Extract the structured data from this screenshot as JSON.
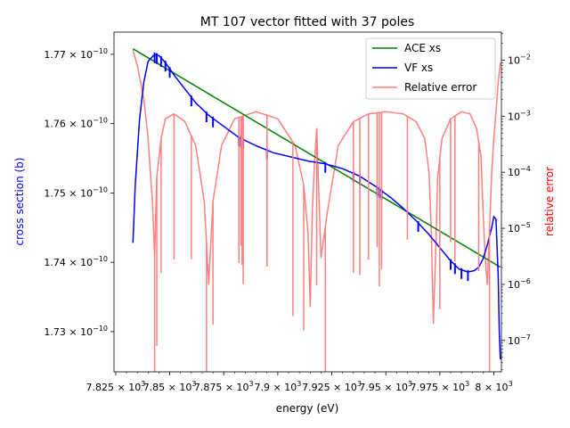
{
  "chart_data": {
    "type": "line",
    "title": "MT 107 vector fitted with 37 poles",
    "xlabel": "energy (eV)",
    "ylabel_left": "cross section (b)",
    "ylabel_right": "relative error",
    "colors": {
      "ace": "#008000",
      "vf": "#0000ff",
      "err": "#ff7f7f",
      "left_label": "#0000ff",
      "right_label": "#ff0000"
    },
    "x_range": [
      7824.2,
      8003.5
    ],
    "y_left_range": [
      1.7242e-10,
      1.7732e-10
    ],
    "y_right_range_log": [
      -7.56,
      -1.5
    ],
    "x_ticks": [
      {
        "value": 7825,
        "label_base": "7.825 × 10",
        "label_exp": "3"
      },
      {
        "value": 7850,
        "label_base": "7.85 × 10",
        "label_exp": "3"
      },
      {
        "value": 7875,
        "label_base": "7.875 × 10",
        "label_exp": "3"
      },
      {
        "value": 7900,
        "label_base": "7.9 × 10",
        "label_exp": "3"
      },
      {
        "value": 7925,
        "label_base": "7.925 × 10",
        "label_exp": "3"
      },
      {
        "value": 7950,
        "label_base": "7.95 × 10",
        "label_exp": "3"
      },
      {
        "value": 7975,
        "label_base": "7.975 × 10",
        "label_exp": "3"
      },
      {
        "value": 8000,
        "label_base": "8 × 10",
        "label_exp": "3"
      }
    ],
    "y_left_ticks": [
      {
        "value": 1.73e-10,
        "label_base": "1.73 × 10",
        "label_exp": "−10"
      },
      {
        "value": 1.74e-10,
        "label_base": "1.74 × 10",
        "label_exp": "−10"
      },
      {
        "value": 1.75e-10,
        "label_base": "1.75 × 10",
        "label_exp": "−10"
      },
      {
        "value": 1.76e-10,
        "label_base": "1.76 × 10",
        "label_exp": "−10"
      },
      {
        "value": 1.77e-10,
        "label_base": "1.77 × 10",
        "label_exp": "−10"
      }
    ],
    "y_right_ticks": [
      {
        "value": -7,
        "label_base": "10",
        "label_exp": "−7"
      },
      {
        "value": -6,
        "label_base": "10",
        "label_exp": "−6"
      },
      {
        "value": -5,
        "label_base": "10",
        "label_exp": "−5"
      },
      {
        "value": -4,
        "label_base": "10",
        "label_exp": "−4"
      },
      {
        "value": -3,
        "label_base": "10",
        "label_exp": "−3"
      },
      {
        "value": -2,
        "label_base": "10",
        "label_exp": "−2"
      }
    ],
    "legend": {
      "placement": "top-right",
      "entries": [
        "ACE xs",
        "VF xs",
        "Relative error"
      ]
    },
    "series": [
      {
        "name": "ACE xs",
        "axis": "left",
        "x": [
          7833,
          8003
        ],
        "y": [
          1.7708e-10,
          1.7393e-10
        ]
      },
      {
        "name": "VF xs",
        "axis": "left",
        "x": [
          7833,
          7834,
          7836,
          7838,
          7840,
          7843,
          7845,
          7848,
          7852,
          7857,
          7862,
          7868,
          7875,
          7882,
          7890,
          7898,
          7906,
          7914,
          7922,
          7930,
          7938,
          7945,
          7952,
          7958,
          7964,
          7970,
          7975,
          7980,
          7984,
          7988,
          7991,
          7993,
          7995,
          7997,
          7999,
          8000,
          8001,
          8002,
          8002.5,
          8003
        ],
        "y": [
          1.7428e-10,
          1.751e-10,
          1.7605e-10,
          1.766e-10,
          1.769e-10,
          1.77e-10,
          1.7698e-10,
          1.7688e-10,
          1.767e-10,
          1.765e-10,
          1.763e-10,
          1.7612e-10,
          1.7596e-10,
          1.758e-10,
          1.7568e-10,
          1.7558e-10,
          1.7552e-10,
          1.7546e-10,
          1.7542e-10,
          1.7535e-10,
          1.7524e-10,
          1.751e-10,
          1.7494e-10,
          1.7478e-10,
          1.746e-10,
          1.744e-10,
          1.7421e-10,
          1.7402e-10,
          1.739e-10,
          1.7386e-10,
          1.7388e-10,
          1.7393e-10,
          1.7405e-10,
          1.7425e-10,
          1.745e-10,
          1.7466e-10,
          1.7462e-10,
          1.738e-10,
          1.73e-10,
          1.726e-10
        ]
      },
      {
        "name": "Relative error",
        "axis": "right",
        "scale": "log",
        "x": [
          7833,
          7835,
          7838,
          7840,
          7841,
          7842,
          7843,
          7844,
          7846,
          7848,
          7852,
          7857,
          7862,
          7866,
          7868,
          7870,
          7874,
          7880,
          7890,
          7900,
          7908,
          7912,
          7914,
          7915,
          7916,
          7917,
          7918,
          7920,
          7923,
          7928,
          7935,
          7942,
          7950,
          7958,
          7964,
          7968,
          7970,
          7971,
          7972,
          7973,
          7974,
          7976,
          7980,
          7985,
          7989,
          7992,
          7994,
          7995,
          7996,
          7997,
          7998,
          7999,
          8000,
          8001,
          8002,
          8003
        ],
        "y": [
          0.015,
          0.008,
          0.002,
          0.0004,
          0.0001,
          3e-05,
          3e-06,
          8e-05,
          0.0004,
          0.0009,
          0.0011,
          0.0008,
          0.0003,
          3e-05,
          1e-06,
          3e-05,
          0.0003,
          0.0009,
          0.0012,
          0.0009,
          0.0003,
          6e-05,
          8e-06,
          4e-07,
          2e-05,
          0.00015,
          0.0006,
          3e-06,
          2e-05,
          0.0003,
          0.0008,
          0.0011,
          0.0012,
          0.0011,
          0.0008,
          0.0004,
          0.0001,
          1e-05,
          2e-07,
          3e-06,
          8e-05,
          0.0004,
          0.0009,
          0.0012,
          0.0011,
          0.0006,
          0.0002,
          2e-05,
          3e-06,
          1e-06,
          1e-05,
          0.0001,
          0.0004,
          0.0012,
          0.004,
          0.009
        ]
      }
    ],
    "spikes": {
      "vf_x": [
        7843,
        7844,
        7846,
        7848,
        7850,
        7860,
        7867,
        7870,
        7882,
        7883,
        7883.5,
        7884,
        7895,
        7922,
        7935,
        7938,
        7946,
        7947,
        7948,
        7965,
        7980,
        7982,
        7985,
        7988
      ],
      "err_x": [
        7843,
        7844,
        7846,
        7852,
        7860,
        7867,
        7870,
        7882,
        7883,
        7883.5,
        7884,
        7895,
        7907,
        7912,
        7918,
        7922,
        7935,
        7938,
        7942,
        7946,
        7947,
        7948,
        7960,
        7975,
        7980,
        7982,
        7993,
        7998
      ]
    }
  }
}
